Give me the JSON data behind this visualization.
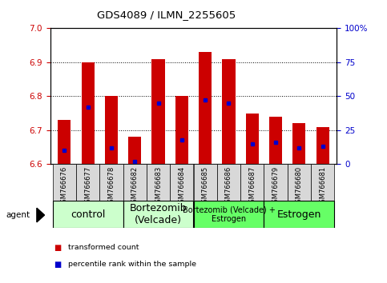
{
  "title": "GDS4089 / ILMN_2255605",
  "samples": [
    "GSM766676",
    "GSM766677",
    "GSM766678",
    "GSM766682",
    "GSM766683",
    "GSM766684",
    "GSM766685",
    "GSM766686",
    "GSM766687",
    "GSM766679",
    "GSM766680",
    "GSM766681"
  ],
  "transformed_counts": [
    6.73,
    6.9,
    6.8,
    6.68,
    6.91,
    6.8,
    6.93,
    6.91,
    6.75,
    6.74,
    6.72,
    6.71
  ],
  "percentile_ranks": [
    10,
    42,
    12,
    2,
    45,
    18,
    47,
    45,
    15,
    16,
    12,
    13
  ],
  "ylim_left": [
    6.6,
    7.0
  ],
  "ylim_right": [
    0,
    100
  ],
  "yticks_left": [
    6.6,
    6.7,
    6.8,
    6.9,
    7.0
  ],
  "yticks_right": [
    0,
    25,
    50,
    75,
    100
  ],
  "ytick_labels_right": [
    "0",
    "25",
    "50",
    "75",
    "100%"
  ],
  "bar_color": "#cc0000",
  "percentile_color": "#0000cc",
  "base_value": 6.6,
  "group_labels": [
    "control",
    "Bortezomib\n(Velcade)",
    "Bortezomib (Velcade) +\nEstrogen",
    "Estrogen"
  ],
  "group_colors": [
    "#ccffcc",
    "#ccffcc",
    "#66ff66",
    "#66ff66"
  ],
  "group_idx_ranges": [
    [
      0,
      2
    ],
    [
      3,
      5
    ],
    [
      6,
      8
    ],
    [
      9,
      11
    ]
  ],
  "group_fontsizes": [
    9,
    9,
    7,
    9
  ],
  "legend_items": [
    {
      "color": "#cc0000",
      "label": "transformed count"
    },
    {
      "color": "#0000cc",
      "label": "percentile rank within the sample"
    }
  ],
  "tick_color_left": "#cc0000",
  "tick_color_right": "#0000cc"
}
